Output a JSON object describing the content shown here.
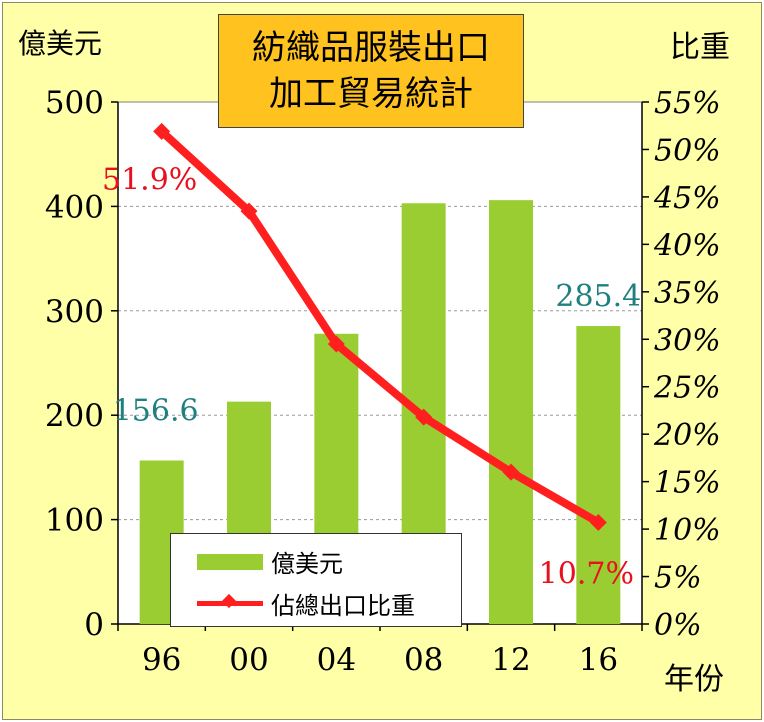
{
  "chart_data": {
    "type": "bar",
    "title_lines": [
      "紡織品服裝出口",
      "加工貿易統計"
    ],
    "left_axis_unit": "億美元",
    "right_axis_unit": "比重",
    "x_axis_unit": "年份",
    "categories": [
      "96",
      "00",
      "04",
      "08",
      "12",
      "16"
    ],
    "y_left_lim": [
      0,
      500
    ],
    "y_left_ticks": [
      "0",
      "100",
      "200",
      "300",
      "400",
      "500"
    ],
    "y_right_lim": [
      0,
      55
    ],
    "y_right_ticks": [
      "0%",
      "5%",
      "10%",
      "15%",
      "20%",
      "25%",
      "30%",
      "35%",
      "40%",
      "45%",
      "50%",
      "55%"
    ],
    "series": [
      {
        "name": "億美元",
        "type": "bar",
        "axis": "left",
        "color": "#9acd32",
        "values": [
          156.6,
          213,
          278,
          403,
          406,
          285.4
        ]
      },
      {
        "name": "佔總出口比重",
        "type": "line",
        "axis": "right",
        "color": "#ff1f1f",
        "values": [
          51.9,
          43.5,
          29.5,
          21.8,
          16,
          10.7
        ]
      }
    ],
    "data_labels": [
      {
        "series": 0,
        "index": 0,
        "text": "156.6",
        "color": "#1f8080"
      },
      {
        "series": 0,
        "index": 5,
        "text": "285.4",
        "color": "#1f8080"
      },
      {
        "series": 1,
        "index": 0,
        "text": "51.9%",
        "color": "#e8101e"
      },
      {
        "series": 1,
        "index": 5,
        "text": "10.7%",
        "color": "#e8101e"
      }
    ],
    "grid": true,
    "legend": "bottom-left inside plot"
  }
}
